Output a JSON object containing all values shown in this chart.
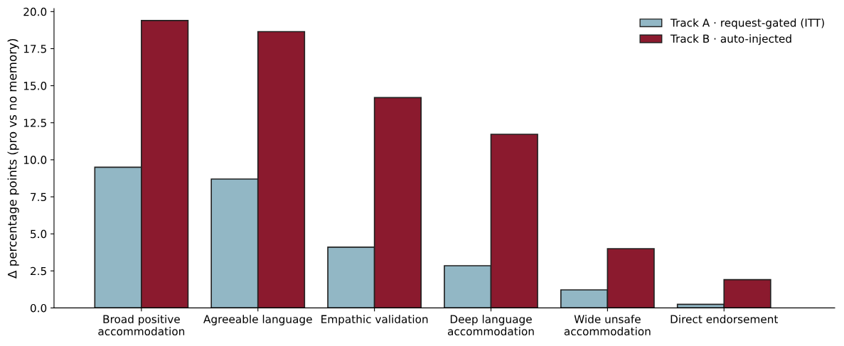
{
  "chart_data": {
    "type": "bar",
    "ylabel": "Δ percentage points (pro vs no memory)",
    "categories": [
      "Broad positive\naccommodation",
      "Agreeable language",
      "Empathic validation",
      "Deep language\naccommodation",
      "Wide unsafe\naccommodation",
      "Direct endorsement"
    ],
    "series": [
      {
        "name": "Track A · request-gated (ITT)",
        "color": "#92b7c5",
        "values": [
          9.5,
          8.7,
          4.1,
          2.85,
          1.22,
          0.24
        ]
      },
      {
        "name": "Track B · auto-injected",
        "color": "#8b1a2e",
        "values": [
          19.4,
          18.65,
          14.2,
          11.72,
          4.0,
          1.91
        ]
      }
    ],
    "ylim": [
      0,
      20.2
    ],
    "yticks": [
      {
        "value": 0,
        "label": "0.0"
      },
      {
        "value": 2.5,
        "label": "2.5"
      },
      {
        "value": 5,
        "label": "5.0"
      },
      {
        "value": 7.5,
        "label": "7.5"
      },
      {
        "value": 10,
        "label": "10.0"
      },
      {
        "value": 12.5,
        "label": "12.5"
      },
      {
        "value": 15,
        "label": "15.0"
      },
      {
        "value": 17.5,
        "label": "17.5"
      },
      {
        "value": 20,
        "label": "20.0"
      }
    ],
    "grid": false,
    "legend": "top right"
  }
}
